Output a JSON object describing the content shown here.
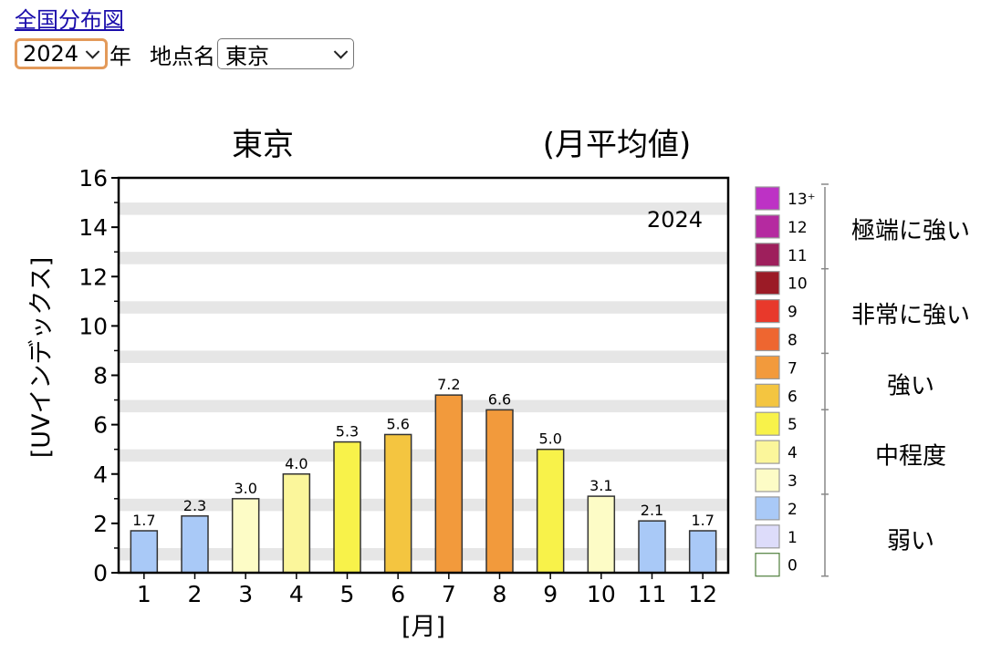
{
  "header": {
    "link_label": "全国分布図",
    "year_select": {
      "value": "2024"
    },
    "year_suffix": "年",
    "station_label": "地点名",
    "station_select": {
      "value": "東京"
    }
  },
  "chart_data": {
    "type": "bar",
    "title": "東京",
    "subtitle": "(月平均値)",
    "annotation": "2024",
    "xlabel": "[月]",
    "ylabel": "[UVインデックス]",
    "ylim": [
      0,
      16
    ],
    "yticks": [
      "0",
      "2",
      "4",
      "6",
      "8",
      "10",
      "12",
      "14",
      "16"
    ],
    "categories": [
      "1",
      "2",
      "3",
      "4",
      "5",
      "6",
      "7",
      "8",
      "9",
      "10",
      "11",
      "12"
    ],
    "values": [
      1.7,
      2.3,
      3.0,
      4.0,
      5.3,
      5.6,
      7.2,
      6.6,
      5.0,
      3.1,
      2.1,
      1.7
    ],
    "data_labels": [
      "1.7",
      "2.3",
      "3.0",
      "4.0",
      "5.3",
      "5.6",
      "7.2",
      "6.6",
      "5.0",
      "3.1",
      "2.1",
      "1.7"
    ],
    "bar_colors": [
      "#a9c9f7",
      "#a9c9f7",
      "#fdfcc6",
      "#fbf69b",
      "#f8f24a",
      "#f4c540",
      "#f29a3c",
      "#f29a3c",
      "#f8f24a",
      "#fdfcc6",
      "#a9c9f7",
      "#a9c9f7"
    ],
    "grid": "horizontal bands",
    "legend": {
      "placement": "right",
      "items": [
        {
          "label": "13⁺",
          "color": "#bd32c5"
        },
        {
          "label": "12",
          "color": "#b52aa0"
        },
        {
          "label": "11",
          "color": "#9e1f5c"
        },
        {
          "label": "10",
          "color": "#9b1b26"
        },
        {
          "label": "9",
          "color": "#e8392b"
        },
        {
          "label": "8",
          "color": "#ee6630"
        },
        {
          "label": "7",
          "color": "#f29a3c"
        },
        {
          "label": "6",
          "color": "#f4c540"
        },
        {
          "label": "5",
          "color": "#f8f24a"
        },
        {
          "label": "4",
          "color": "#fbf69b"
        },
        {
          "label": "3",
          "color": "#fdfcc6"
        },
        {
          "label": "2",
          "color": "#a9c9f7"
        },
        {
          "label": "1",
          "color": "#dddcfa"
        },
        {
          "label": "0",
          "color": "#ffffff"
        }
      ],
      "categories": [
        "極端に強い",
        "非常に強い",
        "強い",
        "中程度",
        "弱い"
      ]
    }
  }
}
